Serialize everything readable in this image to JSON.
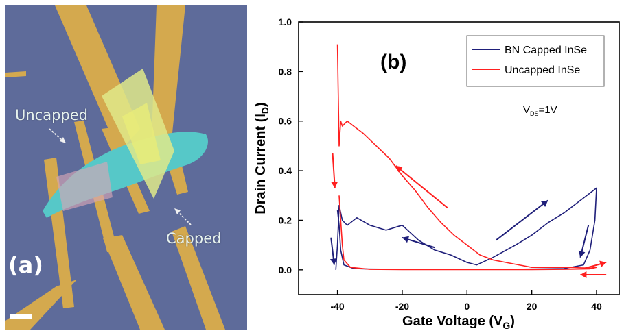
{
  "photo": {
    "panel_tag": "(a)",
    "labels": {
      "uncapped": "Uncapped",
      "capped": "Capped"
    }
  },
  "chart_data": {
    "type": "line",
    "panel_tag": "(b)",
    "xlabel": "Gate Voltage (VG)",
    "xlabel_main": "Gate Voltage (V",
    "xlabel_sub": "G",
    "xlabel_end": ")",
    "ylabel": "Drain Current (ID)",
    "ylabel_main": "Drain Current (I",
    "ylabel_sub": "D",
    "ylabel_end": ")",
    "xlim": [
      -52,
      47
    ],
    "ylim": [
      -0.1,
      1.0
    ],
    "xticks": [
      -40,
      -20,
      0,
      20,
      40
    ],
    "xtick_labels": [
      "-40",
      "-20",
      "0",
      "20",
      "40"
    ],
    "yticks": [
      0.0,
      0.2,
      0.4,
      0.6,
      0.8,
      1.0
    ],
    "ytick_labels": [
      "0.0",
      "0.2",
      "0.4",
      "0.6",
      "0.8",
      "1.0"
    ],
    "grid": false,
    "legend_position": "top-right",
    "annotation": {
      "main": "V",
      "sub": "DS",
      "tail": "=1V"
    },
    "colors": {
      "capped": "#1f1f7a",
      "uncapped": "#ff2020"
    },
    "series": [
      {
        "name": "BN Capped InSe",
        "color": "#1f1f7a",
        "x": [
          -40.5,
          -40,
          -39.5,
          -38.5,
          -37,
          -34,
          -30,
          -25,
          -20,
          -15,
          -10,
          -5,
          0,
          3,
          8,
          15,
          20,
          25,
          30,
          35,
          38,
          40,
          39.5,
          38,
          36,
          30,
          20,
          10,
          5,
          0,
          -10,
          -20,
          -30,
          -35,
          -38,
          -39,
          -39.5,
          -40
        ],
        "y": [
          0.0,
          0.1,
          0.26,
          0.2,
          0.18,
          0.21,
          0.18,
          0.16,
          0.18,
          0.12,
          0.08,
          0.06,
          0.03,
          0.02,
          0.05,
          0.1,
          0.14,
          0.19,
          0.23,
          0.28,
          0.31,
          0.33,
          0.2,
          0.08,
          0.02,
          0.005,
          0.003,
          0.002,
          0.002,
          0.002,
          0.002,
          0.002,
          0.003,
          0.005,
          0.02,
          0.08,
          0.18,
          0.24
        ]
      },
      {
        "name": "Uncapped InSe",
        "color": "#ff2020",
        "x": [
          -40,
          -39.8,
          -39.5,
          -39,
          -38.5,
          -37,
          -35,
          -32,
          -28,
          -24,
          -20,
          -16,
          -12,
          -8,
          -4,
          0,
          4,
          8,
          12,
          16,
          20,
          25,
          30,
          35,
          38,
          40,
          38,
          30,
          20,
          10,
          0,
          -10,
          -20,
          -30,
          -36,
          -38,
          -38.5,
          -39,
          -39.5
        ],
        "y": [
          0.91,
          0.75,
          0.5,
          0.6,
          0.58,
          0.6,
          0.58,
          0.55,
          0.5,
          0.45,
          0.38,
          0.32,
          0.25,
          0.19,
          0.14,
          0.1,
          0.06,
          0.04,
          0.03,
          0.02,
          0.01,
          0.01,
          0.01,
          0.008,
          0.007,
          0.01,
          0.004,
          0.002,
          0.001,
          0.001,
          0.001,
          0.001,
          0.001,
          0.002,
          0.01,
          0.04,
          0.1,
          0.2,
          0.3
        ]
      }
    ],
    "arrows": [
      {
        "series": "Uncapped InSe",
        "x1": -6,
        "y1": 0.25,
        "x2": -22,
        "y2": 0.42
      },
      {
        "series": "Uncapped InSe",
        "x1": -41.5,
        "y1": 0.47,
        "x2": -40.8,
        "y2": 0.33
      },
      {
        "series": "Uncapped InSe",
        "x1": 36,
        "y1": 0.005,
        "x2": 43,
        "y2": 0.03
      },
      {
        "series": "Uncapped InSe",
        "x1": 43,
        "y1": -0.02,
        "x2": 35,
        "y2": -0.02
      },
      {
        "series": "BN Capped InSe",
        "x1": -10,
        "y1": 0.09,
        "x2": -20,
        "y2": 0.13
      },
      {
        "series": "BN Capped InSe",
        "x1": -42,
        "y1": 0.13,
        "x2": -41,
        "y2": 0.02
      },
      {
        "series": "BN Capped InSe",
        "x1": 9,
        "y1": 0.12,
        "x2": 25,
        "y2": 0.28
      },
      {
        "series": "BN Capped InSe",
        "x1": 37.5,
        "y1": 0.18,
        "x2": 35,
        "y2": 0.05
      }
    ]
  }
}
